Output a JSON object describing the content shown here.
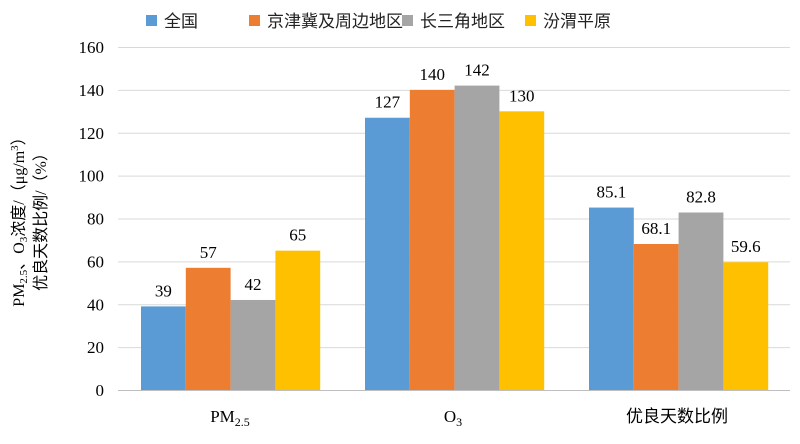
{
  "chart_data": {
    "type": "bar",
    "categories": [
      "PM2.5",
      "O3",
      "优良天数比例"
    ],
    "series": [
      {
        "name": "全国",
        "values": [
          39,
          127,
          85.1
        ],
        "color": "#5B9BD5"
      },
      {
        "name": "京津冀及周边地区",
        "values": [
          57,
          140,
          68.1
        ],
        "color": "#ED7D31"
      },
      {
        "name": "长三角地区",
        "values": [
          42,
          142,
          82.8
        ],
        "color": "#A5A5A5"
      },
      {
        "name": "汾渭平原",
        "values": [
          65,
          130,
          59.6
        ],
        "color": "#FFC000"
      }
    ],
    "data_labels": [
      [
        "39",
        "127",
        "85.1"
      ],
      [
        "57",
        "140",
        "68.1"
      ],
      [
        "42",
        "142",
        "82.8"
      ],
      [
        "65",
        "130",
        "59.6"
      ]
    ],
    "ylabel_line1": "PM2.5、O3浓度/（μg/m³）",
    "ylabel_line2": "优良天数比例/（%）",
    "ylim": [
      0,
      160
    ],
    "yticks": [
      "0",
      "20",
      "40",
      "60",
      "80",
      "100",
      "120",
      "140",
      "160"
    ],
    "grid": true,
    "legend_position": "top"
  }
}
